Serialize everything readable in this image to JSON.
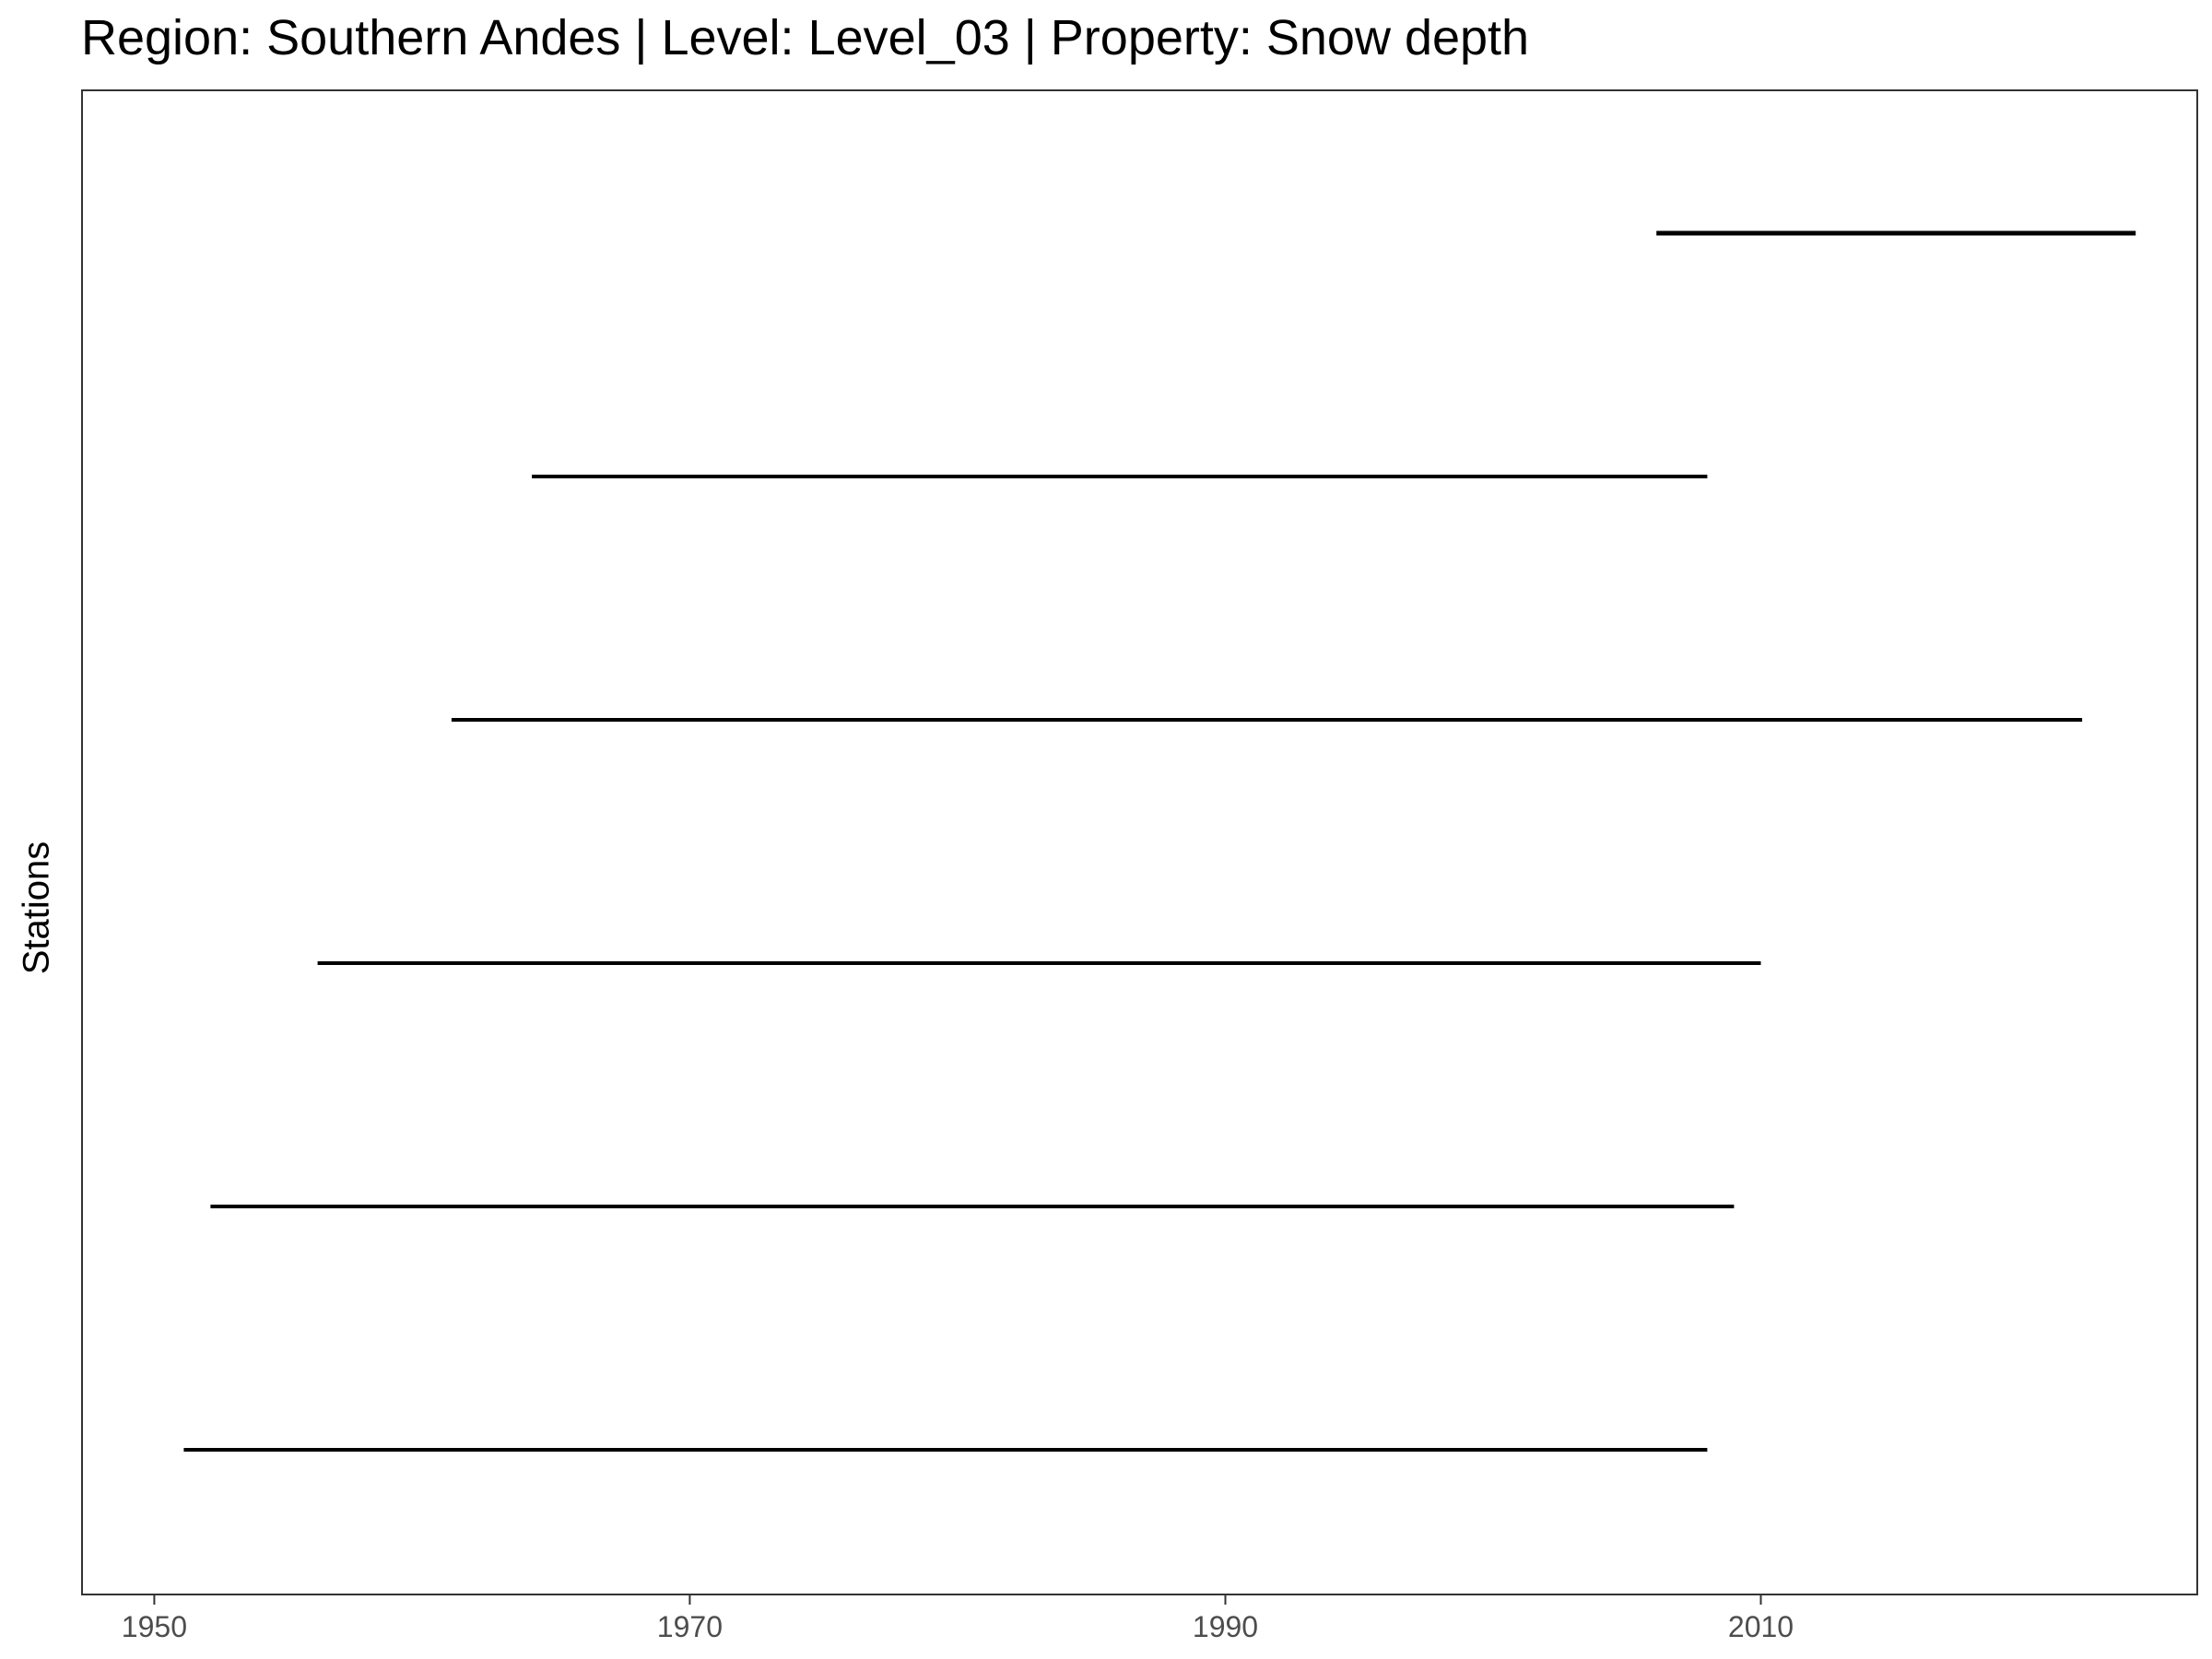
{
  "chart_data": {
    "type": "timeline",
    "title": "Region: Southern Andes | Level: Level_03 | Property: Snow depth",
    "xlabel": "",
    "ylabel": "Stations",
    "xlim": [
      1947.3,
      2026.3
    ],
    "xticks": [
      1950,
      1970,
      1990,
      2010
    ],
    "xtick_labels": [
      "1950",
      "1970",
      "1990",
      "2010"
    ],
    "grid": false,
    "legend": "none",
    "line_color": "#000000",
    "segments": [
      {
        "start": 1951.1,
        "end": 2008.0
      },
      {
        "start": 1952.1,
        "end": 2009.0
      },
      {
        "start": 1956.1,
        "end": 2010.0
      },
      {
        "start": 1961.1,
        "end": 2022.0
      },
      {
        "start": 1964.1,
        "end": 2008.0
      },
      {
        "start": 2006.1,
        "end": 2024.0
      }
    ]
  }
}
